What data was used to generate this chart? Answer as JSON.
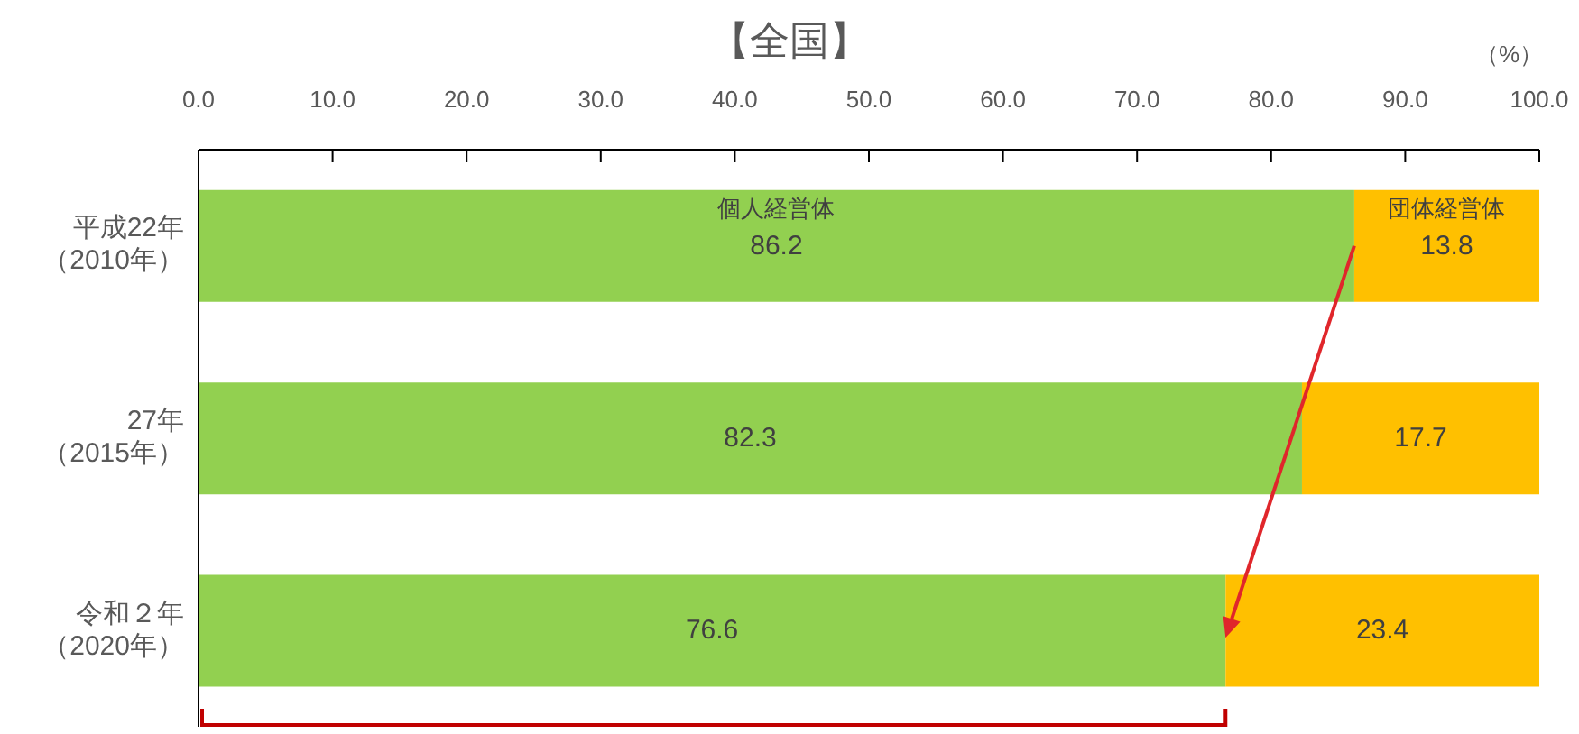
{
  "chart_data": {
    "type": "bar",
    "orientation": "horizontal",
    "stacked": true,
    "title": "【全国】",
    "xlabel": "（%）",
    "categories": [
      "平成22年（2010年）",
      "27年（2015年）",
      "令和２年（2020年）"
    ],
    "series": [
      {
        "name": "個人経営体",
        "color": "#92d050",
        "values": [
          86.2,
          82.3,
          76.6
        ]
      },
      {
        "name": "団体経営体",
        "color": "#ffc000",
        "values": [
          13.8,
          17.7,
          23.4
        ]
      }
    ],
    "xlim": [
      0,
      100
    ],
    "xticks": [
      {
        "value": 0,
        "label": "0.0"
      },
      {
        "value": 10,
        "label": "10.0"
      },
      {
        "value": 20,
        "label": "20.0"
      },
      {
        "value": 30,
        "label": "30.0"
      },
      {
        "value": 40,
        "label": "40.0"
      },
      {
        "value": 50,
        "label": "50.0"
      },
      {
        "value": 60,
        "label": "60.0"
      },
      {
        "value": 70,
        "label": "70.0"
      },
      {
        "value": 80,
        "label": "80.0"
      },
      {
        "value": 90,
        "label": "90.0"
      },
      {
        "value": 100,
        "label": "100.0"
      }
    ],
    "data_labels": true
  }
}
